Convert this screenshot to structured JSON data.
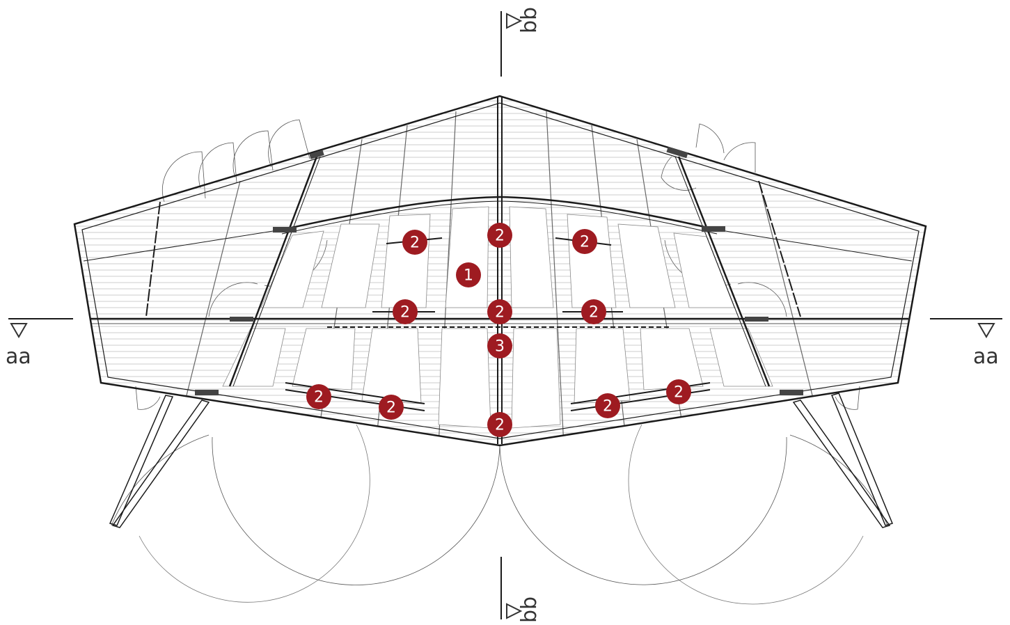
{
  "colors": {
    "marker": "#9e1b21",
    "line": "#1a1a1a",
    "hatch": "#9a9a9a"
  },
  "section_cuts": {
    "aa_left": "aa",
    "aa_right": "aa",
    "bb_top": "bb",
    "bb_bottom": "bb"
  },
  "markers": {
    "m1": "1",
    "m2": "2",
    "m3": "3"
  }
}
